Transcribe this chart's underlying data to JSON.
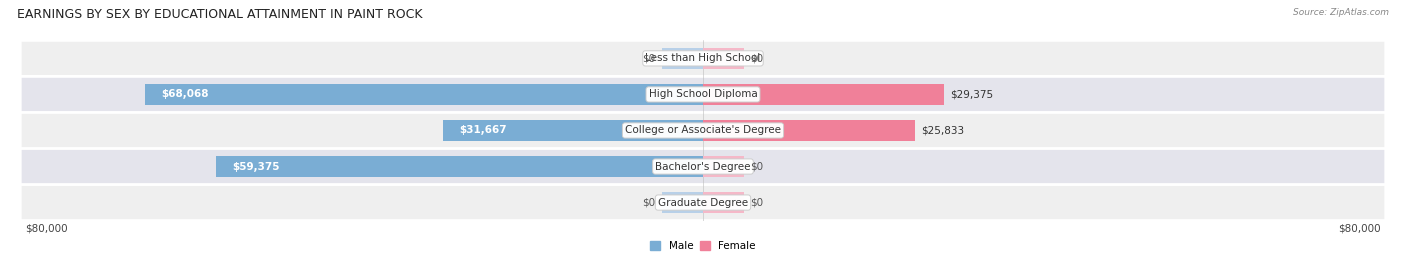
{
  "title": "EARNINGS BY SEX BY EDUCATIONAL ATTAINMENT IN PAINT ROCK",
  "source": "Source: ZipAtlas.com",
  "categories": [
    "Less than High School",
    "High School Diploma",
    "College or Associate's Degree",
    "Bachelor's Degree",
    "Graduate Degree"
  ],
  "male_values": [
    0,
    68068,
    31667,
    59375,
    0
  ],
  "female_values": [
    0,
    29375,
    25833,
    0,
    0
  ],
  "male_color": "#7aadd4",
  "female_color": "#f08099",
  "male_color_light": "#b8d0e8",
  "female_color_light": "#f5b8c8",
  "row_bg_even": "#efefef",
  "row_bg_odd": "#e4e4ec",
  "max_value": 80000,
  "title_fontsize": 9,
  "label_fontsize": 7.5,
  "tick_fontsize": 7.5,
  "bar_height": 0.58,
  "stub_value": 5000,
  "figsize": [
    14.06,
    2.69
  ],
  "dpi": 100
}
